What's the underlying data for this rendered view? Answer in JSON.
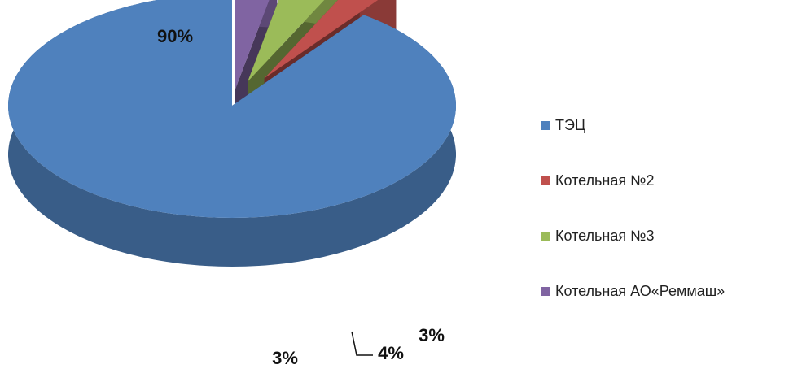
{
  "chart_data": {
    "type": "pie",
    "style": "3d-exploded",
    "categories": [
      "ТЭЦ",
      "Котельная №2",
      "Котельная №3",
      "Котельная АО«Реммаш»"
    ],
    "values": [
      90,
      3,
      4,
      3
    ],
    "data_labels": [
      "90%",
      "3%",
      "4%",
      "3%"
    ],
    "colors": [
      "#4f81bd",
      "#c0504d",
      "#9bbb59",
      "#8064a2"
    ],
    "legend_position": "right"
  }
}
